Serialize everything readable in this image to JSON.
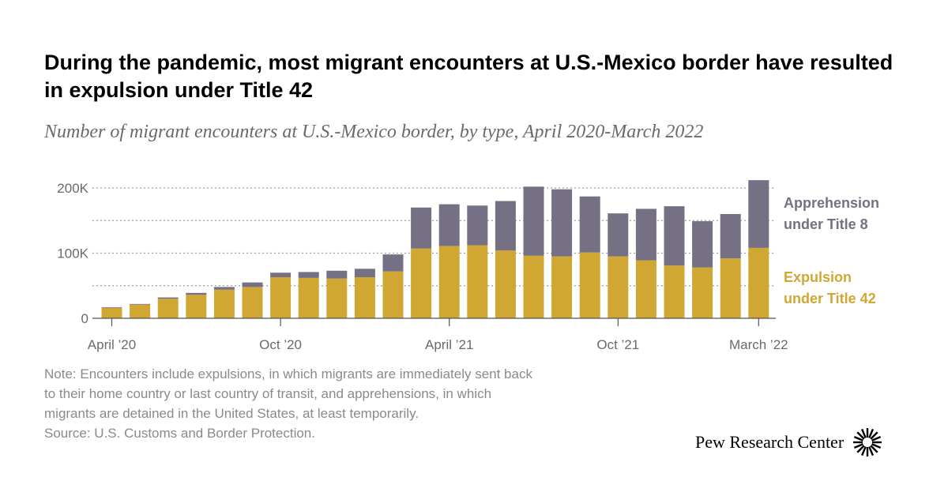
{
  "title": "During the pandemic, most migrant encounters at U.S.-Mexico border have resulted in expulsion under Title 42",
  "subtitle": "Number of migrant encounters at U.S.-Mexico border, by type, April 2020-March 2022",
  "notes": [
    "Note: Encounters include expulsions, in which migrants are immediately sent back",
    "to their home country or last country of transit, and apprehensions, in which",
    "migrants are detained in the United States, at least temporarily.",
    "Source: U.S. Customs and Border Protection."
  ],
  "logo_text": "Pew Research Center",
  "colors": {
    "title42": "#d1a733",
    "title8": "#757083",
    "axis_text": "#6a6a6a",
    "grid": "#a0a0a0"
  },
  "chart_data": {
    "type": "bar",
    "stacked": true,
    "title": "During the pandemic, most migrant encounters at U.S.-Mexico border have resulted in expulsion under Title 42",
    "subtitle": "Number of migrant encounters at U.S.-Mexico border, by type, April 2020-March 2022",
    "xlabel": "",
    "ylabel": "",
    "categories": [
      "Apr 2020",
      "May 2020",
      "Jun 2020",
      "Jul 2020",
      "Aug 2020",
      "Sep 2020",
      "Oct 2020",
      "Nov 2020",
      "Dec 2020",
      "Jan 2021",
      "Feb 2021",
      "Mar 2021",
      "Apr 2021",
      "May 2021",
      "Jun 2021",
      "Jul 2021",
      "Aug 2021",
      "Sep 2021",
      "Oct 2021",
      "Nov 2021",
      "Dec 2021",
      "Jan 2022",
      "Feb 2022",
      "Mar 2022"
    ],
    "x_tick_labels": [
      {
        "index": 0,
        "label": "April ’20"
      },
      {
        "index": 6,
        "label": "Oct ’20"
      },
      {
        "index": 12,
        "label": "April ’21"
      },
      {
        "index": 18,
        "label": "Oct ’21"
      },
      {
        "index": 23,
        "label": "March ’22"
      }
    ],
    "y_ticks": [
      {
        "value": 0,
        "label": "0"
      },
      {
        "value": 50000,
        "label": ""
      },
      {
        "value": 100000,
        "label": "100K"
      },
      {
        "value": 150000,
        "label": ""
      },
      {
        "value": 200000,
        "label": "200K"
      }
    ],
    "ylim": [
      0,
      200000
    ],
    "grid": "horizontal dotted",
    "legend_placement": "right, inline labels",
    "series": [
      {
        "name": "Expulsion under Title 42",
        "label_lines": [
          "Expulsion",
          "under Title 42"
        ],
        "color": "#d1a733",
        "values": [
          16000,
          21000,
          30000,
          36000,
          44000,
          48000,
          63000,
          62000,
          61000,
          63000,
          72000,
          107000,
          111000,
          112000,
          104000,
          96000,
          95000,
          101000,
          95000,
          89000,
          81000,
          78000,
          92000,
          108000
        ]
      },
      {
        "name": "Apprehension under Title 8",
        "label_lines": [
          "Apprehension",
          "under Title 8"
        ],
        "color": "#757083",
        "values": [
          1000,
          1000,
          2000,
          3000,
          4000,
          7000,
          7000,
          9000,
          12000,
          13000,
          26000,
          63000,
          64000,
          61000,
          76000,
          106000,
          103000,
          86000,
          66000,
          79000,
          91000,
          71000,
          68000,
          104000
        ]
      }
    ]
  }
}
